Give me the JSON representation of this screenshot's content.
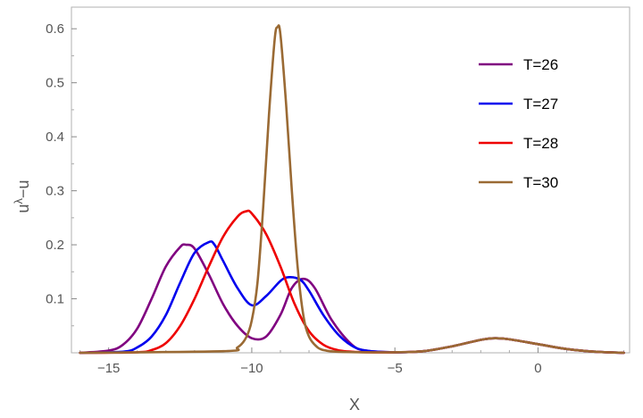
{
  "chart_data": {
    "type": "line",
    "title": "",
    "xlabel": "X",
    "ylabel_base": "u",
    "ylabel_sup": "λ",
    "ylabel_tail": "−u",
    "xlim": [
      -16.3,
      3.2
    ],
    "ylim": [
      0,
      0.64
    ],
    "xticks": [
      -15,
      -10,
      -5,
      0
    ],
    "xtick_labels": [
      "−15",
      "−10",
      "−5",
      "0"
    ],
    "yticks": [
      0.1,
      0.2,
      0.3,
      0.4,
      0.5,
      0.6
    ],
    "ytick_labels": [
      "0.1",
      "0.2",
      "0.3",
      "0.4",
      "0.5",
      "0.6"
    ],
    "grid": false,
    "legend_position": "top-right",
    "series": [
      {
        "name": "T=26",
        "color": "#800080",
        "x": [
          -16,
          -15,
          -14.5,
          -14,
          -13.5,
          -13,
          -12.5,
          -12.3,
          -12,
          -11.5,
          -11,
          -10.5,
          -10,
          -9.5,
          -9,
          -8.6,
          -8.2,
          -7.8,
          -7.2,
          -6.5,
          -6,
          -5,
          -4,
          -3,
          -2,
          -1.5,
          -1,
          0,
          1,
          2,
          3
        ],
        "y": [
          0.0,
          0.004,
          0.015,
          0.045,
          0.1,
          0.16,
          0.196,
          0.2,
          0.193,
          0.145,
          0.09,
          0.05,
          0.027,
          0.03,
          0.07,
          0.12,
          0.137,
          0.12,
          0.06,
          0.015,
          0.004,
          0.001,
          0.003,
          0.012,
          0.024,
          0.027,
          0.025,
          0.016,
          0.007,
          0.002,
          0.0
        ]
      },
      {
        "name": "T=27",
        "color": "#0000ee",
        "x": [
          -16,
          -14.5,
          -14,
          -13.5,
          -13,
          -12.5,
          -12,
          -11.5,
          -11.3,
          -11,
          -10.5,
          -10,
          -9.5,
          -9,
          -8.7,
          -8.3,
          -8,
          -7.5,
          -7,
          -6.5,
          -6,
          -5,
          -4,
          -3,
          -2,
          -1.5,
          -1,
          0,
          1,
          2,
          3
        ],
        "y": [
          0.0,
          0.002,
          0.01,
          0.03,
          0.07,
          0.13,
          0.185,
          0.205,
          0.2,
          0.17,
          0.12,
          0.088,
          0.105,
          0.133,
          0.14,
          0.135,
          0.115,
          0.07,
          0.035,
          0.013,
          0.004,
          0.001,
          0.003,
          0.012,
          0.024,
          0.027,
          0.025,
          0.016,
          0.007,
          0.002,
          0.0
        ]
      },
      {
        "name": "T=28",
        "color": "#ee0000",
        "x": [
          -16,
          -14,
          -13.5,
          -13,
          -12.5,
          -12,
          -11.5,
          -11,
          -10.5,
          -10.2,
          -10,
          -9.5,
          -9,
          -8.5,
          -8,
          -7.5,
          -7,
          -6.5,
          -6,
          -5,
          -4,
          -3,
          -2,
          -1.5,
          -1,
          0,
          1,
          2,
          3
        ],
        "y": [
          0.0,
          0.001,
          0.005,
          0.018,
          0.05,
          0.1,
          0.16,
          0.215,
          0.252,
          0.262,
          0.258,
          0.22,
          0.16,
          0.09,
          0.04,
          0.015,
          0.005,
          0.002,
          0.001,
          0.001,
          0.003,
          0.012,
          0.024,
          0.027,
          0.025,
          0.016,
          0.007,
          0.002,
          0.0
        ]
      },
      {
        "name": "T=30",
        "color": "#9a6a34",
        "x": [
          -16,
          -11,
          -10.5,
          -10.2,
          -10,
          -9.8,
          -9.6,
          -9.4,
          -9.2,
          -9.1,
          -9,
          -8.8,
          -8.6,
          -8.4,
          -8.2,
          -8,
          -7.7,
          -7.4,
          -7,
          -6,
          -5,
          -4,
          -3,
          -2,
          -1.5,
          -1,
          0,
          1,
          2,
          3
        ],
        "y": [
          0.0,
          0.003,
          0.01,
          0.028,
          0.06,
          0.13,
          0.27,
          0.44,
          0.58,
          0.603,
          0.59,
          0.46,
          0.3,
          0.16,
          0.07,
          0.03,
          0.01,
          0.004,
          0.002,
          0.001,
          0.001,
          0.003,
          0.012,
          0.024,
          0.027,
          0.025,
          0.016,
          0.007,
          0.002,
          0.0
        ]
      }
    ]
  }
}
